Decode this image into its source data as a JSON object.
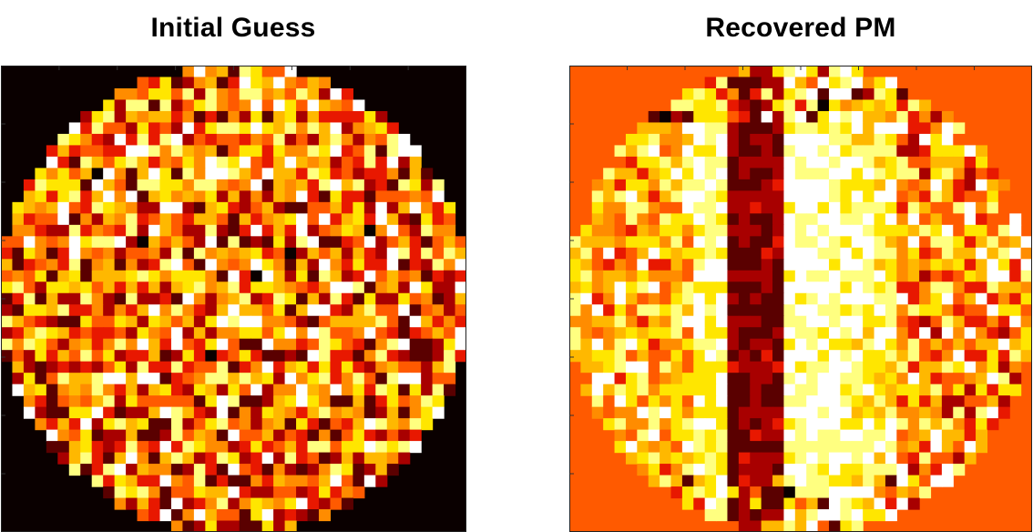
{
  "palette": [
    "#0a0000",
    "#5a0000",
    "#a80000",
    "#e81800",
    "#ff5a00",
    "#ff8c00",
    "#ffb800",
    "#ffe600",
    "#ffff80",
    "#ffffff"
  ],
  "chart_data": [
    {
      "type": "heatmap",
      "title": "Initial Guess",
      "grid_size": 41,
      "pattern": "random",
      "background_level": 0,
      "colormap": "hot",
      "axes_visible": false
    },
    {
      "type": "heatmap",
      "title": "Recovered PM",
      "grid_size": 41,
      "pattern": "lens",
      "background_level": 4,
      "colormap": "hot",
      "axes_visible": false
    }
  ]
}
